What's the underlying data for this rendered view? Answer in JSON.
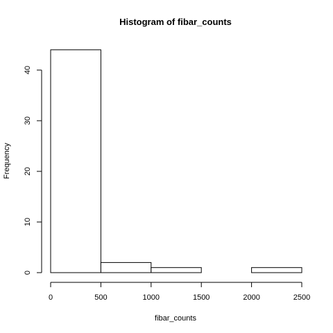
{
  "chart_data": {
    "type": "bar",
    "title": "Histogram of fibar_counts",
    "xlabel": "fibar_counts",
    "ylabel": "Frequency",
    "bins": [
      {
        "start": 0,
        "end": 500,
        "count": 44
      },
      {
        "start": 500,
        "end": 1000,
        "count": 2
      },
      {
        "start": 1000,
        "end": 1500,
        "count": 1
      },
      {
        "start": 1500,
        "end": 2000,
        "count": 0
      },
      {
        "start": 2000,
        "end": 2500,
        "count": 1
      }
    ],
    "xlim": [
      0,
      2500
    ],
    "ylim": [
      0,
      44
    ],
    "xticks": [
      0,
      500,
      1000,
      1500,
      2000,
      2500
    ],
    "yticks": [
      0,
      10,
      20,
      30,
      40
    ],
    "grid": false
  }
}
